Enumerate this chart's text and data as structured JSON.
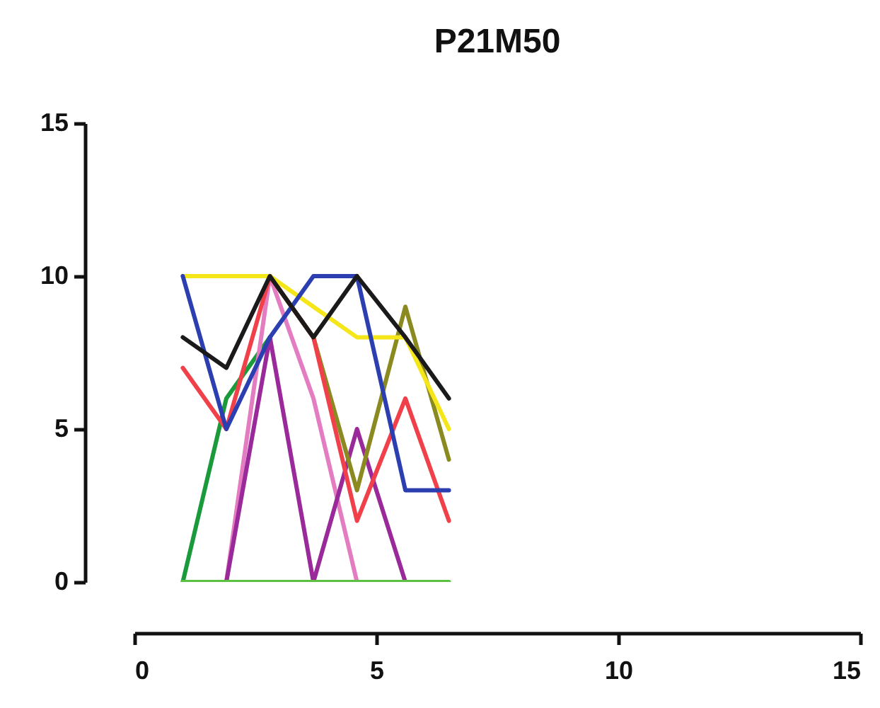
{
  "chart_data": {
    "type": "line",
    "title": "P21M50",
    "x": [
      1,
      1.9,
      2.8,
      3.7,
      4.6,
      5.6,
      6.5
    ],
    "series": [
      {
        "color": "#1a9a3a",
        "values": [
          0,
          6,
          8,
          null,
          null,
          null,
          null
        ]
      },
      {
        "color": "#e37cc0",
        "values": [
          null,
          0,
          10,
          6,
          0,
          null,
          null
        ]
      },
      {
        "color": "#9a2a9a",
        "values": [
          null,
          0,
          8,
          0,
          5,
          0,
          null
        ]
      },
      {
        "color": "#8a8a20",
        "values": [
          null,
          null,
          10,
          8,
          3,
          9,
          4
        ]
      },
      {
        "color": "#f0404a",
        "values": [
          7,
          5,
          10,
          8,
          2,
          6,
          2
        ]
      },
      {
        "color": "#f5e61a",
        "values": [
          10,
          10,
          10,
          9,
          8,
          8,
          5
        ]
      },
      {
        "color": "#2b3fb0",
        "values": [
          10,
          5,
          8,
          10,
          10,
          3,
          3
        ]
      },
      {
        "color": "#1a1a1a",
        "values": [
          8,
          7,
          10,
          8,
          10,
          8,
          6
        ]
      },
      {
        "color": "#5cc040",
        "values": [
          0,
          0,
          0,
          0,
          0,
          0,
          0
        ]
      }
    ],
    "xlim": [
      0,
      15
    ],
    "ylim": [
      0,
      15
    ],
    "xticks": [
      0,
      5,
      10,
      15
    ],
    "yticks": [
      0,
      5,
      10,
      15
    ],
    "grid": false,
    "legend": false,
    "marker": "none",
    "line_style": "solid"
  }
}
